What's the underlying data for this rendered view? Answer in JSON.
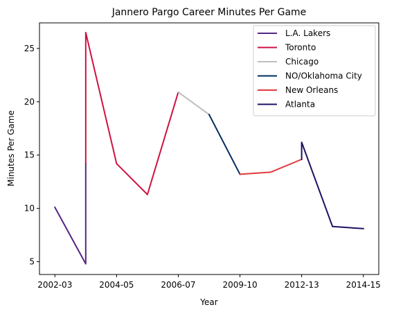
{
  "chart_data": {
    "type": "line",
    "title": "Jannero Pargo Career Minutes Per Game",
    "xlabel": "Year",
    "ylabel": "Minutes Per Game",
    "xlim": [
      -0.5,
      10.5
    ],
    "ylim": [
      3.8,
      27.4
    ],
    "x_ticks": [
      {
        "x": 0,
        "label": "2002-03"
      },
      {
        "x": 2,
        "label": "2004-05"
      },
      {
        "x": 4,
        "label": "2006-07"
      },
      {
        "x": 6,
        "label": "2009-10"
      },
      {
        "x": 8,
        "label": "2012-13"
      },
      {
        "x": 10,
        "label": "2014-15"
      }
    ],
    "y_ticks": [
      5,
      10,
      15,
      20,
      25
    ],
    "legend": {
      "placement": "top-right"
    },
    "series": [
      {
        "name": "L.A. Lakers",
        "color": "#552583",
        "points": [
          {
            "x": 0,
            "y": 10.1
          },
          {
            "x": 1,
            "y": 4.8
          },
          {
            "x": 1,
            "y": 14.2
          }
        ]
      },
      {
        "name": "Toronto",
        "color": "#CE1141",
        "points": [
          {
            "x": 1,
            "y": 14.2
          },
          {
            "x": 1,
            "y": 26.5
          },
          {
            "x": 2,
            "y": 14.2
          },
          {
            "x": 3,
            "y": 11.3
          },
          {
            "x": 4,
            "y": 20.9
          }
        ]
      },
      {
        "name": "Chicago",
        "color": "#BFBFBF",
        "points": [
          {
            "x": 4,
            "y": 20.9
          },
          {
            "x": 5,
            "y": 18.8
          }
        ]
      },
      {
        "name": "NO/Oklahoma City",
        "color": "#002B5C",
        "points": [
          {
            "x": 5,
            "y": 18.8
          },
          {
            "x": 6,
            "y": 13.2
          }
        ]
      },
      {
        "name": "New Orleans",
        "color": "#E03A3E",
        "points": [
          {
            "x": 6,
            "y": 13.2
          },
          {
            "x": 7,
            "y": 13.4
          },
          {
            "x": 8,
            "y": 14.6
          }
        ]
      },
      {
        "name": "Atlanta",
        "color": "#1D1160",
        "points": [
          {
            "x": 8,
            "y": 14.6
          },
          {
            "x": 8,
            "y": 16.2
          },
          {
            "x": 9,
            "y": 8.3
          },
          {
            "x": 10,
            "y": 8.1
          }
        ]
      }
    ]
  }
}
